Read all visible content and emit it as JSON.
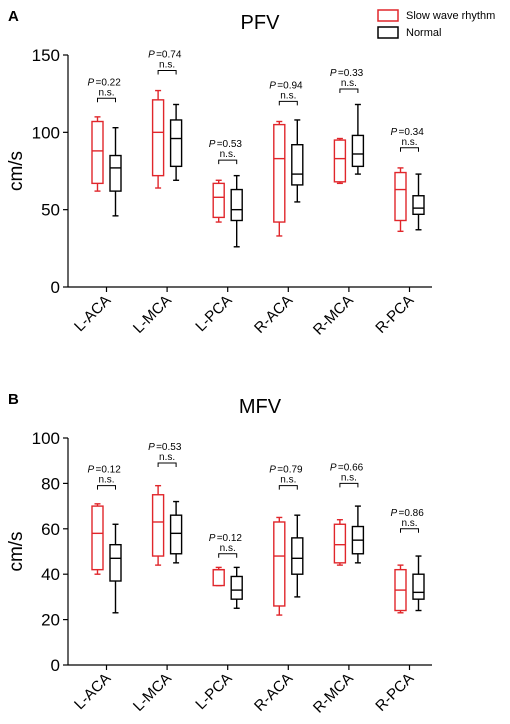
{
  "legend": {
    "position": "top-right",
    "items": [
      {
        "label": "Slow wave rhythm",
        "color": "#e0262b"
      },
      {
        "label": "Normal",
        "color": "#000000"
      }
    ]
  },
  "chart_data": [
    {
      "panel_label": "A",
      "type": "box",
      "title": "PFV",
      "xlabel": "",
      "ylabel": "cm/s",
      "ylim": [
        0,
        150
      ],
      "yticks": [
        0,
        50,
        100,
        150
      ],
      "categories": [
        "L-ACA",
        "L-MCA",
        "L-PCA",
        "R-ACA",
        "R-MCA",
        "R-PCA"
      ],
      "grid": false,
      "legend_position": "top-right",
      "series": [
        {
          "name": "Slow wave rhythm",
          "color": "#e0262b",
          "boxes": [
            {
              "min": 62,
              "q1": 67,
              "median": 88,
              "q3": 107,
              "max": 110
            },
            {
              "min": 64,
              "q1": 72,
              "median": 100,
              "q3": 121,
              "max": 127
            },
            {
              "min": 42,
              "q1": 45,
              "median": 58,
              "q3": 67,
              "max": 69
            },
            {
              "min": 33,
              "q1": 42,
              "median": 83,
              "q3": 105,
              "max": 107
            },
            {
              "min": 67,
              "q1": 68,
              "median": 83,
              "q3": 95,
              "max": 96
            },
            {
              "min": 36,
              "q1": 43,
              "median": 63,
              "q3": 74,
              "max": 77
            }
          ]
        },
        {
          "name": "Normal",
          "color": "#000000",
          "boxes": [
            {
              "min": 46,
              "q1": 62,
              "median": 77,
              "q3": 85,
              "max": 103
            },
            {
              "min": 69,
              "q1": 78,
              "median": 96,
              "q3": 108,
              "max": 118
            },
            {
              "min": 26,
              "q1": 43,
              "median": 50,
              "q3": 63,
              "max": 72
            },
            {
              "min": 55,
              "q1": 66,
              "median": 73,
              "q3": 92,
              "max": 108
            },
            {
              "min": 73,
              "q1": 78,
              "median": 86,
              "q3": 98,
              "max": 118
            },
            {
              "min": 37,
              "q1": 47,
              "median": 51,
              "q3": 59,
              "max": 73
            }
          ]
        }
      ],
      "comparisons": [
        {
          "p": "=0.22",
          "sig": "n.s.",
          "bracket_y": 122
        },
        {
          "p": "=0.74",
          "sig": "n.s.",
          "bracket_y": 140
        },
        {
          "p": "=0.53",
          "sig": "n.s.",
          "bracket_y": 82
        },
        {
          "p": "=0.94",
          "sig": "n.s.",
          "bracket_y": 120
        },
        {
          "p": "=0.33",
          "sig": "n.s.",
          "bracket_y": 128
        },
        {
          "p": "=0.34",
          "sig": "n.s.",
          "bracket_y": 90
        }
      ]
    },
    {
      "panel_label": "B",
      "type": "box",
      "title": "MFV",
      "xlabel": "",
      "ylabel": "cm/s",
      "ylim": [
        0,
        100
      ],
      "yticks": [
        0,
        20,
        40,
        60,
        80,
        100
      ],
      "categories": [
        "L-ACA",
        "L-MCA",
        "L-PCA",
        "R-ACA",
        "R-MCA",
        "R-PCA"
      ],
      "grid": false,
      "series": [
        {
          "name": "Slow wave rhythm",
          "color": "#e0262b",
          "boxes": [
            {
              "min": 40,
              "q1": 42,
              "median": 58,
              "q3": 70,
              "max": 71
            },
            {
              "min": 44,
              "q1": 48,
              "median": 63,
              "q3": 75,
              "max": 79
            },
            {
              "min": 35,
              "q1": 35,
              "median": 42,
              "q3": 42,
              "max": 43
            },
            {
              "min": 22,
              "q1": 26,
              "median": 48,
              "q3": 63,
              "max": 65
            },
            {
              "min": 44,
              "q1": 45,
              "median": 53,
              "q3": 62,
              "max": 64
            },
            {
              "min": 23,
              "q1": 24,
              "median": 33,
              "q3": 42,
              "max": 44
            }
          ]
        },
        {
          "name": "Normal",
          "color": "#000000",
          "boxes": [
            {
              "min": 23,
              "q1": 37,
              "median": 47,
              "q3": 53,
              "max": 62
            },
            {
              "min": 45,
              "q1": 49,
              "median": 58,
              "q3": 66,
              "max": 72
            },
            {
              "min": 25,
              "q1": 29,
              "median": 33,
              "q3": 39,
              "max": 43
            },
            {
              "min": 30,
              "q1": 40,
              "median": 47,
              "q3": 56,
              "max": 66
            },
            {
              "min": 45,
              "q1": 49,
              "median": 55,
              "q3": 61,
              "max": 70
            },
            {
              "min": 24,
              "q1": 29,
              "median": 32,
              "q3": 40,
              "max": 48
            }
          ]
        }
      ],
      "comparisons": [
        {
          "p": "=0.12",
          "sig": "n.s.",
          "bracket_y": 79
        },
        {
          "p": "=0.53",
          "sig": "n.s.",
          "bracket_y": 89
        },
        {
          "p": "=0.12",
          "sig": "n.s.",
          "bracket_y": 49
        },
        {
          "p": "=0.79",
          "sig": "n.s.",
          "bracket_y": 79
        },
        {
          "p": "=0.66",
          "sig": "n.s.",
          "bracket_y": 80
        },
        {
          "p": "=0.86",
          "sig": "n.s.",
          "bracket_y": 60
        }
      ]
    }
  ]
}
